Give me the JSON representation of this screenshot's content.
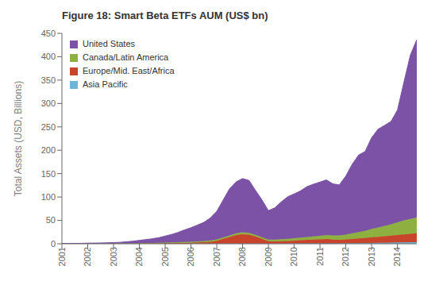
{
  "chart_data": {
    "type": "area",
    "title": "Figure 18: Smart Beta ETFs AUM (US$ bn)",
    "ylabel": "Total Assets (USD, Billions)",
    "stacked": true,
    "grid": false,
    "legend": "upper left",
    "xlim": [
      2001,
      2014.75
    ],
    "xticks": [
      2001,
      2002,
      2003,
      2004,
      2005,
      2006,
      2007,
      2008,
      2009,
      2010,
      2011,
      2012,
      2013,
      2014
    ],
    "ylim": [
      0,
      450
    ],
    "yticks": [
      0,
      50,
      100,
      150,
      200,
      250,
      300,
      350,
      400,
      450
    ],
    "x": [
      2001.0,
      2001.25,
      2001.5,
      2001.75,
      2002.0,
      2002.25,
      2002.5,
      2002.75,
      2003.0,
      2003.25,
      2003.5,
      2003.75,
      2004.0,
      2004.25,
      2004.5,
      2004.75,
      2005.0,
      2005.25,
      2005.5,
      2005.75,
      2006.0,
      2006.25,
      2006.5,
      2006.75,
      2007.0,
      2007.25,
      2007.5,
      2007.75,
      2008.0,
      2008.25,
      2008.5,
      2008.75,
      2009.0,
      2009.25,
      2009.5,
      2009.75,
      2010.0,
      2010.25,
      2010.5,
      2010.75,
      2011.0,
      2011.25,
      2011.5,
      2011.75,
      2012.0,
      2012.25,
      2012.5,
      2012.75,
      2013.0,
      2013.25,
      2013.5,
      2013.75,
      2014.0,
      2014.25,
      2014.5,
      2014.75
    ],
    "series": [
      {
        "name": "Asia Pacific",
        "color": "#6CB4D8",
        "values": [
          0.02,
          0.02,
          0.02,
          0.02,
          0.03,
          0.03,
          0.03,
          0.03,
          0.05,
          0.05,
          0.05,
          0.05,
          0.1,
          0.1,
          0.1,
          0.1,
          0.2,
          0.2,
          0.2,
          0.2,
          0.3,
          0.3,
          0.3,
          0.3,
          0.4,
          0.5,
          0.5,
          0.5,
          0.5,
          0.5,
          0.5,
          0.5,
          0.5,
          0.5,
          0.5,
          0.6,
          0.7,
          0.8,
          0.9,
          1.0,
          1.0,
          1.0,
          1.0,
          1.0,
          1.2,
          1.3,
          1.4,
          1.5,
          1.8,
          2.0,
          2.2,
          2.5,
          2.8,
          3.0,
          3.2,
          3.5
        ]
      },
      {
        "name": "Europe/Mid. East/Africa",
        "color": "#C8442A",
        "values": [
          0.05,
          0.05,
          0.05,
          0.05,
          0.1,
          0.1,
          0.1,
          0.1,
          0.2,
          0.2,
          0.3,
          0.4,
          0.5,
          0.6,
          0.7,
          0.8,
          1.0,
          1.2,
          1.4,
          1.6,
          2.0,
          2.5,
          3.0,
          4.0,
          6.0,
          10.0,
          14.0,
          18.0,
          20.0,
          19.0,
          15.0,
          10.0,
          5.0,
          4.5,
          5.0,
          5.5,
          6.0,
          7.0,
          7.5,
          8.0,
          8.5,
          9.0,
          8.0,
          7.5,
          8.0,
          9.0,
          10.0,
          11.0,
          12.0,
          13.0,
          14.0,
          15.0,
          16.0,
          17.0,
          18.0,
          19.0
        ]
      },
      {
        "name": "Canada/Latin America",
        "color": "#8DB040",
        "values": [
          0.1,
          0.1,
          0.1,
          0.1,
          0.2,
          0.2,
          0.2,
          0.3,
          0.3,
          0.4,
          0.5,
          0.6,
          0.7,
          0.8,
          1.0,
          1.1,
          1.3,
          1.5,
          1.7,
          1.9,
          2.0,
          2.2,
          2.5,
          2.8,
          3.0,
          3.2,
          3.5,
          3.8,
          4.0,
          4.0,
          3.8,
          3.5,
          3.5,
          3.8,
          4.2,
          4.5,
          5.0,
          5.5,
          6.0,
          6.5,
          7.5,
          8.5,
          9.0,
          9.5,
          10.5,
          12.0,
          13.5,
          15.0,
          18.0,
          20.0,
          22.0,
          24.0,
          27.0,
          30.0,
          32.0,
          34.0
        ]
      },
      {
        "name": "United States",
        "color": "#7B52A6",
        "values": [
          0.5,
          0.6,
          0.7,
          0.8,
          1.0,
          1.2,
          1.4,
          1.6,
          2.0,
          2.5,
          3.5,
          4.5,
          6.0,
          7.5,
          9.0,
          11.0,
          14.0,
          17.0,
          21.0,
          26.0,
          30.0,
          35.0,
          40.0,
          48.0,
          60.0,
          80.0,
          100.0,
          110.0,
          115.0,
          112.0,
          95.0,
          80.0,
          62.0,
          68.0,
          80.0,
          90.0,
          95.0,
          100.0,
          108.0,
          112.0,
          115.0,
          118.0,
          110.0,
          108.0,
          125.0,
          148.0,
          165.0,
          170.0,
          195.0,
          210.0,
          215.0,
          220.0,
          240.0,
          295.0,
          350.0,
          380.0
        ]
      }
    ]
  }
}
